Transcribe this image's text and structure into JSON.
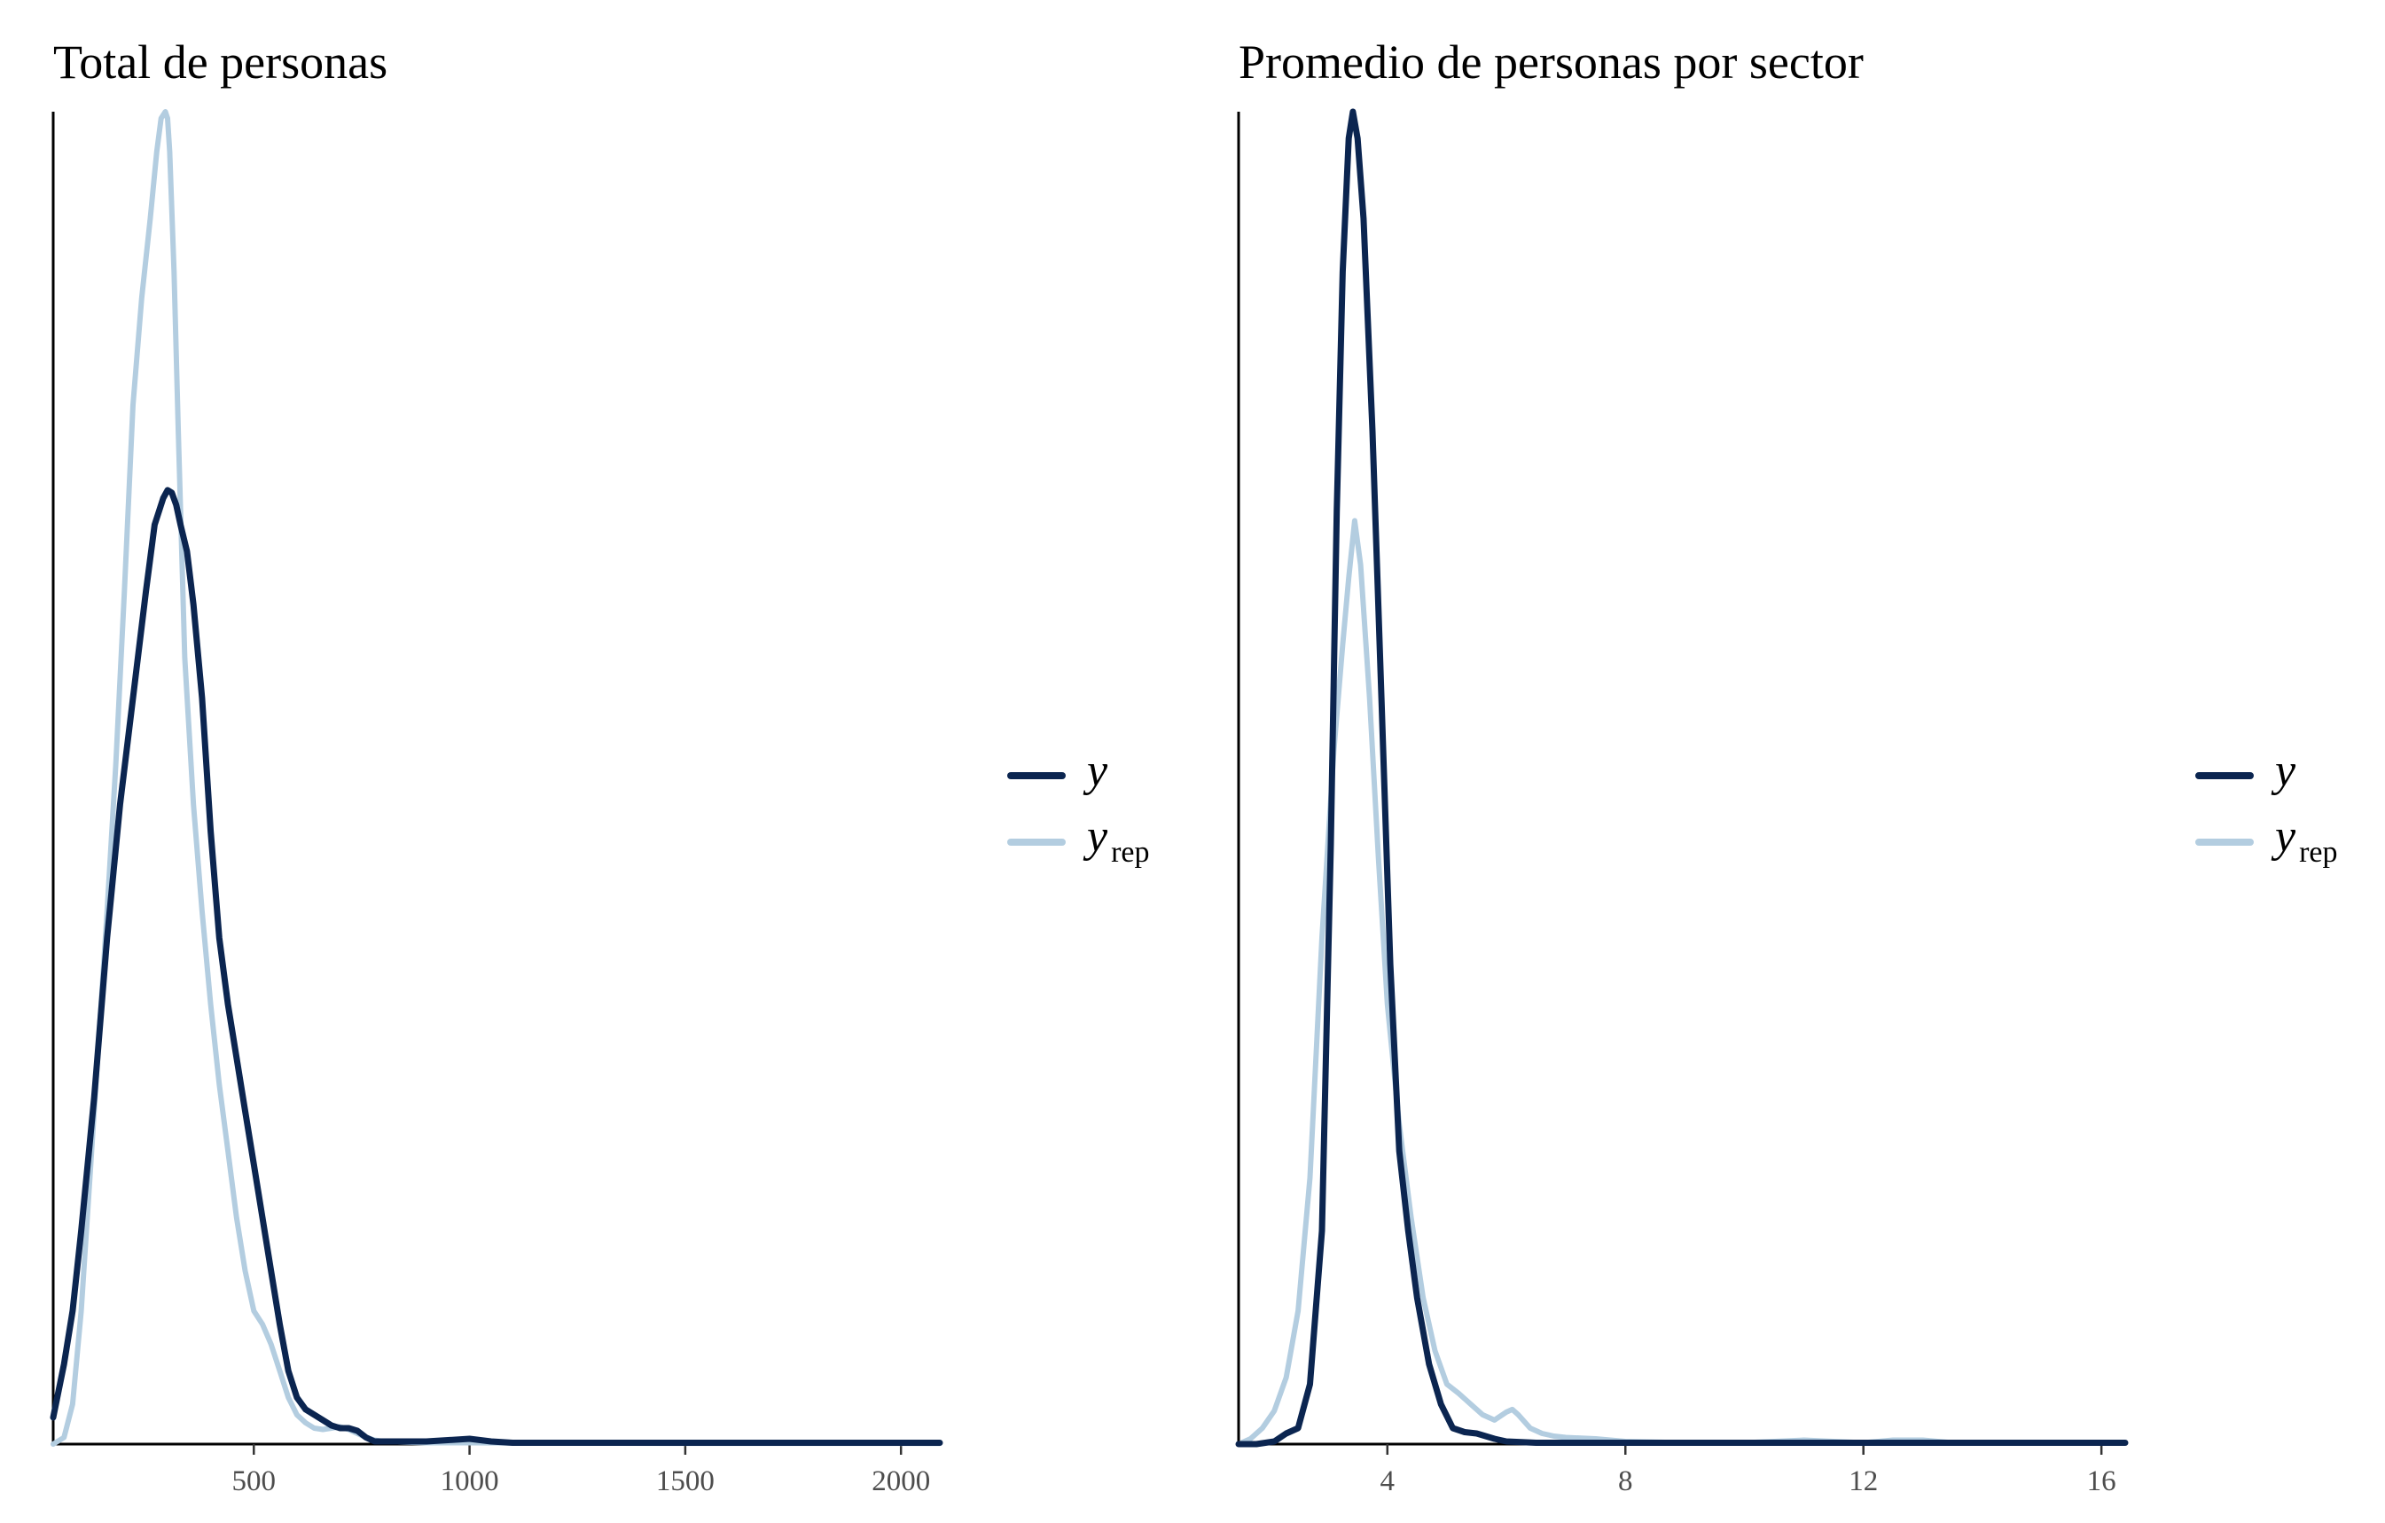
{
  "colors": {
    "y": "#0b2550",
    "yrep": "#b3cde0",
    "axis": "#000000",
    "tick_text": "#4d4d4d"
  },
  "legend": {
    "y_main": "y",
    "yrep_main": "y",
    "yrep_sub": "rep"
  },
  "chart_data": [
    {
      "type": "line",
      "title": "Total de personas",
      "xlabel": "",
      "ylabel": "",
      "xlim": [
        35,
        2090
      ],
      "ylim": [
        0,
        1
      ],
      "xticks": [
        500,
        1000,
        1500,
        2000
      ],
      "xtick_labels": [
        "500",
        "1000",
        "1500",
        "2000"
      ],
      "grid": false,
      "legend_placement": "right",
      "series": [
        {
          "key": "yrep",
          "x": [
            35,
            60,
            80,
            100,
            120,
            140,
            160,
            180,
            200,
            220,
            240,
            260,
            275,
            285,
            295,
            300,
            305,
            315,
            325,
            340,
            360,
            380,
            400,
            420,
            440,
            460,
            480,
            500,
            520,
            540,
            560,
            580,
            600,
            620,
            640,
            660,
            680,
            700,
            720,
            740,
            760,
            780,
            800,
            850,
            900,
            1000,
            1100,
            1500,
            2090
          ],
          "y": [
            0,
            0.005,
            0.03,
            0.1,
            0.2,
            0.3,
            0.4,
            0.51,
            0.64,
            0.78,
            0.86,
            0.92,
            0.97,
            0.995,
            1.0,
            0.995,
            0.97,
            0.88,
            0.76,
            0.59,
            0.48,
            0.4,
            0.33,
            0.27,
            0.22,
            0.17,
            0.13,
            0.1,
            0.09,
            0.075,
            0.055,
            0.035,
            0.022,
            0.016,
            0.012,
            0.011,
            0.012,
            0.013,
            0.011,
            0.008,
            0.005,
            0.003,
            0.002,
            0.0015,
            0.001,
            0.001,
            0.0008,
            0.0006,
            0.0005
          ]
        },
        {
          "key": "y",
          "x": [
            35,
            60,
            80,
            100,
            130,
            160,
            190,
            220,
            250,
            270,
            290,
            300,
            310,
            320,
            330,
            345,
            360,
            380,
            400,
            420,
            440,
            460,
            480,
            500,
            520,
            540,
            560,
            580,
            600,
            620,
            640,
            660,
            680,
            700,
            720,
            740,
            760,
            780,
            800,
            850,
            900,
            950,
            1000,
            1050,
            1100,
            1500,
            2090
          ],
          "y": [
            0.02,
            0.06,
            0.1,
            0.16,
            0.26,
            0.38,
            0.48,
            0.56,
            0.64,
            0.69,
            0.71,
            0.716,
            0.714,
            0.705,
            0.69,
            0.67,
            0.63,
            0.56,
            0.46,
            0.38,
            0.33,
            0.29,
            0.25,
            0.21,
            0.17,
            0.13,
            0.09,
            0.055,
            0.035,
            0.026,
            0.022,
            0.018,
            0.014,
            0.012,
            0.012,
            0.01,
            0.005,
            0.002,
            0.002,
            0.002,
            0.002,
            0.003,
            0.004,
            0.002,
            0.001,
            0.001,
            0.001
          ]
        }
      ]
    },
    {
      "type": "line",
      "title": "Promedio de personas por sector",
      "xlabel": "",
      "ylabel": "",
      "xlim": [
        1.5,
        16.4
      ],
      "ylim": [
        0,
        1
      ],
      "xticks": [
        4,
        8,
        12,
        16
      ],
      "xtick_labels": [
        "4",
        "8",
        "12",
        "16"
      ],
      "grid": false,
      "legend_placement": "right",
      "series": [
        {
          "key": "yrep",
          "x": [
            1.5,
            1.7,
            1.9,
            2.1,
            2.3,
            2.5,
            2.7,
            2.9,
            3.1,
            3.25,
            3.35,
            3.45,
            3.55,
            3.7,
            3.85,
            4.0,
            4.2,
            4.4,
            4.6,
            4.8,
            5.0,
            5.2,
            5.4,
            5.6,
            5.8,
            6.0,
            6.1,
            6.2,
            6.4,
            6.6,
            6.8,
            7.0,
            7.5,
            8.0,
            9.0,
            10.0,
            10.5,
            11.0,
            11.5,
            12.0,
            12.5,
            13.0,
            13.5,
            14.5,
            16.4
          ],
          "y": [
            0,
            0.004,
            0.012,
            0.025,
            0.05,
            0.1,
            0.2,
            0.38,
            0.52,
            0.6,
            0.65,
            0.693,
            0.66,
            0.56,
            0.44,
            0.33,
            0.24,
            0.17,
            0.11,
            0.07,
            0.045,
            0.038,
            0.03,
            0.022,
            0.018,
            0.024,
            0.026,
            0.022,
            0.012,
            0.008,
            0.006,
            0.005,
            0.004,
            0.002,
            0.001,
            0.001,
            0.002,
            0.003,
            0.002,
            0.001,
            0.003,
            0.003,
            0.001,
            0.001,
            0.001
          ]
        },
        {
          "key": "y",
          "x": [
            1.5,
            1.8,
            2.1,
            2.3,
            2.5,
            2.7,
            2.9,
            3.05,
            3.15,
            3.25,
            3.35,
            3.42,
            3.5,
            3.6,
            3.75,
            3.9,
            4.05,
            4.2,
            4.35,
            4.5,
            4.7,
            4.9,
            5.1,
            5.3,
            5.5,
            5.8,
            6.0,
            6.5,
            7.0,
            8.0,
            10.0,
            12.0,
            14.0,
            16.4
          ],
          "y": [
            0,
            0,
            0.002,
            0.008,
            0.012,
            0.045,
            0.16,
            0.45,
            0.7,
            0.88,
            0.98,
            1.0,
            0.98,
            0.92,
            0.76,
            0.56,
            0.36,
            0.22,
            0.16,
            0.11,
            0.06,
            0.03,
            0.012,
            0.009,
            0.008,
            0.004,
            0.002,
            0.001,
            0.001,
            0.001,
            0.001,
            0.001,
            0.001,
            0.001
          ]
        }
      ]
    }
  ]
}
